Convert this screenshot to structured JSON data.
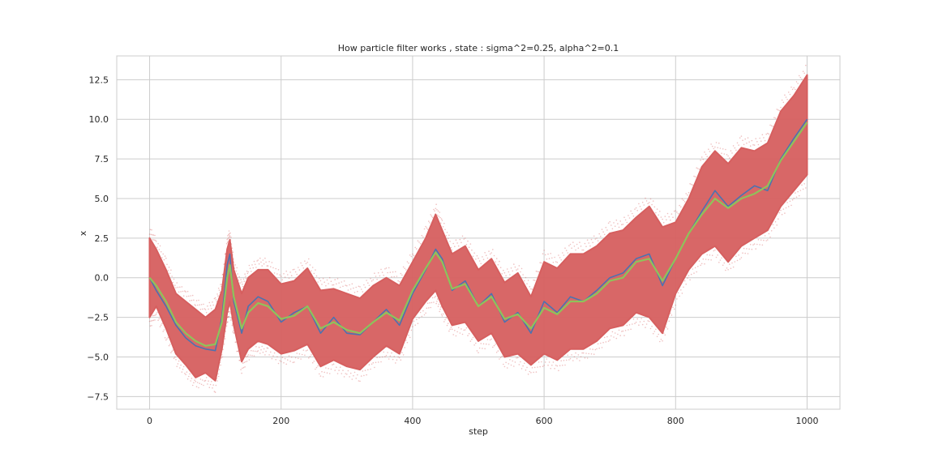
{
  "chart_data": {
    "type": "line",
    "title": "How particle filter works , state : sigma^2=0.25, alpha^2=0.1",
    "xlabel": "step",
    "ylabel": "x",
    "xlim": [
      -50,
      1050
    ],
    "ylim": [
      -8.3,
      14.0
    ],
    "xticks": [
      0,
      200,
      400,
      600,
      800,
      1000
    ],
    "xtick_labels": [
      "0",
      "200",
      "400",
      "600",
      "800",
      "1000"
    ],
    "yticks": [
      -7.5,
      -5.0,
      -2.5,
      0.0,
      2.5,
      5.0,
      7.5,
      10.0,
      12.5
    ],
    "ytick_labels": [
      "−7.5",
      "−5.0",
      "−2.5",
      "0.0",
      "2.5",
      "5.0",
      "7.5",
      "10.0",
      "12.5"
    ],
    "grid": true,
    "legend": "none",
    "series": [
      {
        "role": "particles",
        "style": "scatter band",
        "color": "#d65f5f",
        "x": [
          0,
          10,
          25,
          40,
          55,
          70,
          85,
          100,
          110,
          118,
          122,
          128,
          140,
          150,
          165,
          180,
          200,
          220,
          240,
          260,
          280,
          300,
          320,
          340,
          360,
          380,
          400,
          420,
          435,
          445,
          460,
          480,
          500,
          520,
          540,
          560,
          580,
          600,
          620,
          640,
          660,
          680,
          700,
          720,
          740,
          760,
          780,
          800,
          820,
          840,
          860,
          880,
          900,
          920,
          940,
          960,
          980,
          1000
        ],
        "lower": [
          -2.5,
          -1.8,
          -3.2,
          -4.8,
          -5.5,
          -6.3,
          -6.0,
          -6.5,
          -4.5,
          -2.2,
          -1.5,
          -3.0,
          -5.3,
          -4.5,
          -4.0,
          -4.2,
          -4.8,
          -4.6,
          -4.2,
          -5.6,
          -5.2,
          -5.6,
          -5.8,
          -5.0,
          -4.3,
          -4.8,
          -2.6,
          -1.5,
          -0.8,
          -1.8,
          -3.0,
          -2.8,
          -4.0,
          -3.5,
          -5.0,
          -4.8,
          -5.5,
          -4.8,
          -5.2,
          -4.5,
          -4.5,
          -4.0,
          -3.2,
          -3.0,
          -2.2,
          -2.5,
          -3.5,
          -1.0,
          0.5,
          1.5,
          2.0,
          1.0,
          2.0,
          2.5,
          3.0,
          4.5,
          5.5,
          6.5
        ],
        "upper": [
          2.5,
          1.8,
          0.5,
          -1.0,
          -1.5,
          -2.0,
          -2.5,
          -2.0,
          -0.8,
          1.8,
          2.4,
          0.5,
          -1.0,
          0.0,
          0.5,
          0.5,
          -0.4,
          -0.2,
          0.6,
          -0.8,
          -0.7,
          -1.0,
          -1.3,
          -0.5,
          0.0,
          -0.5,
          1.0,
          2.5,
          4.0,
          3.0,
          1.5,
          2.0,
          0.5,
          1.2,
          -0.3,
          0.3,
          -1.2,
          1.0,
          0.6,
          1.5,
          1.5,
          2.0,
          2.8,
          3.0,
          3.8,
          4.5,
          3.2,
          3.5,
          5.0,
          7.0,
          8.0,
          7.2,
          8.2,
          8.0,
          8.5,
          10.5,
          11.5,
          12.8
        ]
      },
      {
        "role": "true state",
        "style": "line",
        "color": "#4c72b0",
        "x": [
          0,
          10,
          25,
          40,
          55,
          70,
          85,
          100,
          110,
          118,
          122,
          128,
          140,
          150,
          165,
          180,
          200,
          220,
          240,
          260,
          280,
          300,
          320,
          340,
          360,
          380,
          400,
          420,
          435,
          445,
          460,
          480,
          500,
          520,
          540,
          560,
          580,
          600,
          620,
          640,
          660,
          680,
          700,
          720,
          740,
          760,
          780,
          800,
          820,
          840,
          860,
          880,
          900,
          920,
          940,
          960,
          980,
          1000
        ],
        "y": [
          0.0,
          -0.8,
          -1.8,
          -3.0,
          -3.8,
          -4.3,
          -4.5,
          -4.6,
          -2.5,
          0.8,
          1.5,
          -1.5,
          -3.5,
          -1.8,
          -1.2,
          -1.5,
          -2.8,
          -2.2,
          -1.8,
          -3.5,
          -2.5,
          -3.5,
          -3.6,
          -2.8,
          -2.0,
          -3.0,
          -1.0,
          0.5,
          1.8,
          1.2,
          -0.8,
          -0.2,
          -1.8,
          -1.0,
          -2.8,
          -2.2,
          -3.5,
          -1.5,
          -2.2,
          -1.2,
          -1.5,
          -0.8,
          0.0,
          0.3,
          1.2,
          1.5,
          -0.5,
          1.2,
          2.8,
          4.2,
          5.5,
          4.5,
          5.2,
          5.8,
          5.5,
          7.5,
          8.8,
          10.0
        ]
      },
      {
        "role": "estimate",
        "style": "line",
        "color": "#8fc35a",
        "x": [
          0,
          10,
          25,
          40,
          55,
          70,
          85,
          100,
          110,
          118,
          122,
          128,
          140,
          150,
          165,
          180,
          200,
          220,
          240,
          260,
          280,
          300,
          320,
          340,
          360,
          380,
          400,
          420,
          435,
          445,
          460,
          480,
          500,
          520,
          540,
          560,
          580,
          600,
          620,
          640,
          660,
          680,
          700,
          720,
          740,
          760,
          780,
          800,
          820,
          840,
          860,
          880,
          900,
          920,
          940,
          960,
          980,
          1000
        ],
        "y": [
          0.0,
          -0.5,
          -1.5,
          -2.8,
          -3.5,
          -4.0,
          -4.3,
          -4.2,
          -2.8,
          0.0,
          0.8,
          -1.2,
          -3.2,
          -2.2,
          -1.6,
          -1.8,
          -2.6,
          -2.4,
          -1.8,
          -3.2,
          -2.8,
          -3.3,
          -3.5,
          -2.8,
          -2.2,
          -2.7,
          -0.8,
          0.6,
          1.6,
          1.0,
          -0.7,
          -0.4,
          -1.8,
          -1.2,
          -2.6,
          -2.3,
          -3.2,
          -1.9,
          -2.3,
          -1.5,
          -1.5,
          -1.0,
          -0.2,
          0.0,
          1.0,
          1.2,
          -0.2,
          1.2,
          2.8,
          4.0,
          5.0,
          4.4,
          5.0,
          5.3,
          5.8,
          7.4,
          8.6,
          9.8
        ]
      }
    ]
  }
}
